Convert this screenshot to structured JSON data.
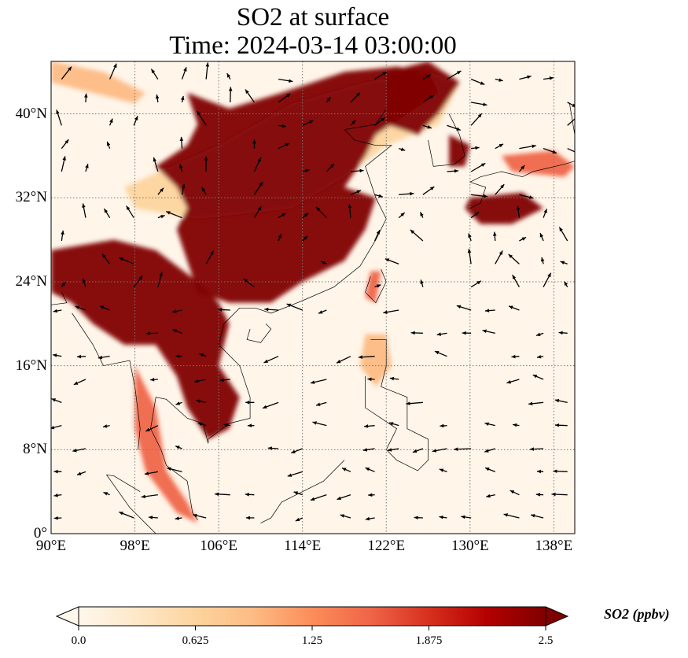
{
  "title": {
    "line1": "SO2 at surface",
    "line2": "Time: 2024-03-14 03:00:00"
  },
  "map": {
    "projection": "PlateCarree",
    "lon_range": [
      90,
      140
    ],
    "lat_range": [
      0,
      45
    ],
    "gridlines": true,
    "coastlines": true,
    "borders": true,
    "colormap": "OrRd",
    "lat_ticks": [
      {
        "value": 40,
        "label": "40°N"
      },
      {
        "value": 32,
        "label": "32°N"
      },
      {
        "value": 24,
        "label": "24°N"
      },
      {
        "value": 16,
        "label": "16°N"
      },
      {
        "value": 8,
        "label": "8°N"
      },
      {
        "value": 0,
        "label": "0°"
      }
    ],
    "lon_ticks": [
      {
        "value": 90,
        "label": "90°E"
      },
      {
        "value": 98,
        "label": "98°E"
      },
      {
        "value": 106,
        "label": "106°E"
      },
      {
        "value": 114,
        "label": "114°E"
      },
      {
        "value": 122,
        "label": "122°E"
      },
      {
        "value": 130,
        "label": "130°E"
      },
      {
        "value": 138,
        "label": "138°E"
      }
    ]
  },
  "colorbar": {
    "label": "SO2 (ppbv)",
    "min": 0,
    "max": 2.5,
    "extend": "both",
    "ticks": [
      {
        "value": 0,
        "label": "0.0"
      },
      {
        "value": 0.625,
        "label": "0.625"
      },
      {
        "value": 1.25,
        "label": "1.25"
      },
      {
        "value": 1.875,
        "label": "1.875"
      },
      {
        "value": 2.5,
        "label": "2.5"
      }
    ],
    "colors": [
      "#fff7ec",
      "#fee8c8",
      "#fdd49e",
      "#fdbb84",
      "#fc8d59",
      "#ef6548",
      "#d7301f",
      "#b30000",
      "#7f0000"
    ]
  }
}
